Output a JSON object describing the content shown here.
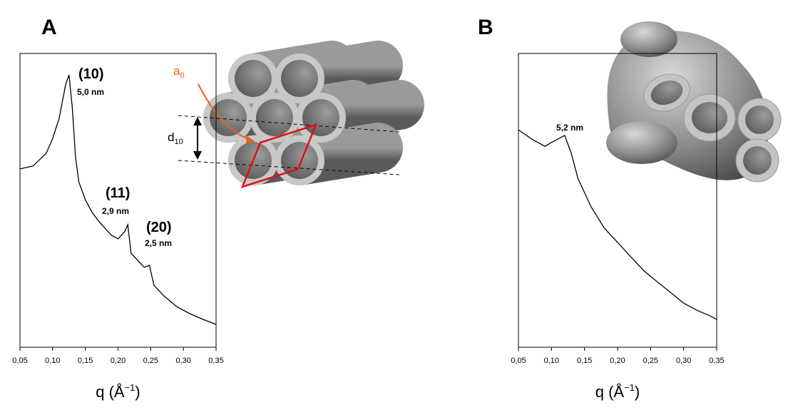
{
  "chart_data": [
    {
      "type": "line",
      "panel_label": "A",
      "x_label": {
        "text": "q (Å",
        "sup": "−1",
        "end": ")"
      },
      "xlim": [
        0.05,
        0.35
      ],
      "ylim": [
        0,
        100
      ],
      "xticks": [
        {
          "value": 0.05,
          "label": "0,05"
        },
        {
          "value": 0.1,
          "label": "0,10"
        },
        {
          "value": 0.15,
          "label": "0,15"
        },
        {
          "value": 0.2,
          "label": "0,20"
        },
        {
          "value": 0.25,
          "label": "0,25"
        },
        {
          "value": 0.3,
          "label": "0,30"
        },
        {
          "value": 0.35,
          "label": "0,35"
        }
      ],
      "series": [
        {
          "color": "#000000",
          "x": [
            0.05,
            0.07,
            0.09,
            0.1,
            0.11,
            0.12,
            0.125,
            0.13,
            0.135,
            0.14,
            0.15,
            0.16,
            0.17,
            0.18,
            0.19,
            0.2,
            0.21,
            0.215,
            0.22,
            0.23,
            0.24,
            0.248,
            0.255,
            0.27,
            0.29,
            0.31,
            0.33,
            0.35
          ],
          "values": [
            60.7,
            61.7,
            66,
            71,
            78,
            89.6,
            92.7,
            81.8,
            64.8,
            56.3,
            50.2,
            46.1,
            43,
            40.5,
            38.1,
            36.9,
            39.3,
            41.7,
            32,
            29.6,
            27.2,
            27.9,
            21.1,
            17.5,
            13.8,
            11.4,
            9.5,
            7.8
          ]
        }
      ],
      "annotations": [
        "(10)",
        "5,0 nm",
        "(11)",
        "2,9 nm",
        "(20)",
        "2,5 nm"
      ],
      "a0_label": {
        "base": "a",
        "sub": "0"
      },
      "d10_label": {
        "base": "d",
        "sub": "10"
      }
    },
    {
      "type": "line",
      "panel_label": "B",
      "x_label": {
        "text": "q (Å",
        "sup": "−1",
        "end": ")"
      },
      "xlim": [
        0.05,
        0.35
      ],
      "ylim": [
        0,
        100
      ],
      "xticks": [
        {
          "value": 0.05,
          "label": "0,05"
        },
        {
          "value": 0.1,
          "label": "0,10"
        },
        {
          "value": 0.15,
          "label": "0,15"
        },
        {
          "value": 0.2,
          "label": "0,20"
        },
        {
          "value": 0.25,
          "label": "0,25"
        },
        {
          "value": 0.3,
          "label": "0,30"
        },
        {
          "value": 0.35,
          "label": "0,35"
        }
      ],
      "series": [
        {
          "color": "#000000",
          "x": [
            0.05,
            0.07,
            0.09,
            0.1,
            0.11,
            0.12,
            0.13,
            0.14,
            0.16,
            0.18,
            0.2,
            0.22,
            0.24,
            0.26,
            0.28,
            0.3,
            0.32,
            0.34,
            0.35
          ],
          "values": [
            74,
            70.9,
            68.4,
            69.7,
            70.9,
            72.1,
            66,
            57.5,
            47.8,
            40.5,
            35.7,
            30.8,
            26,
            22.3,
            18.7,
            15,
            12.6,
            10.7,
            9.5
          ]
        }
      ],
      "annotations": [
        "5,2 nm"
      ]
    }
  ]
}
